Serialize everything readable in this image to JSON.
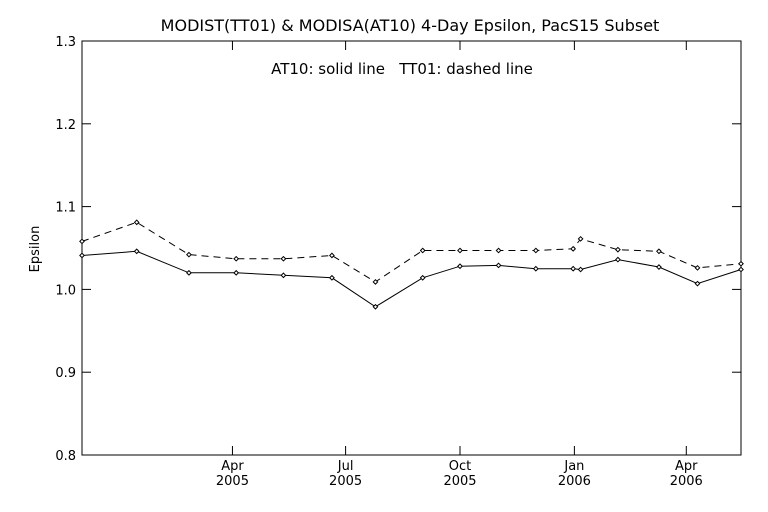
{
  "chart_data": {
    "type": "line",
    "title": "MODIST(TT01) & MODISA(AT10) 4-Day Epsilon, PacS15 Subset",
    "annotation": "AT10: solid line   TT01: dashed line",
    "xlabel": "",
    "ylabel": "Epsilon",
    "ylim": [
      0.8,
      1.3
    ],
    "yticks": [
      0.8,
      0.9,
      1.0,
      1.1,
      1.2,
      1.3
    ],
    "ytick_labels": [
      "0.8",
      "0.9",
      "1.0",
      "1.1",
      "1.2",
      "1.3"
    ],
    "xlim": [
      "2004-12-01",
      "2006-05-15"
    ],
    "xticks": [
      {
        "date": "2005-04-01",
        "line1": "Apr",
        "line2": "2005"
      },
      {
        "date": "2005-07-01",
        "line1": "Jul",
        "line2": "2005"
      },
      {
        "date": "2005-10-01",
        "line1": "Oct",
        "line2": "2005"
      },
      {
        "date": "2006-01-01",
        "line1": "Jan",
        "line2": "2006"
      },
      {
        "date": "2006-04-01",
        "line1": "Apr",
        "line2": "2006"
      }
    ],
    "grid": false,
    "series": [
      {
        "name": "AT10",
        "style": "solid",
        "color": "#000000",
        "points": [
          {
            "x": "2004-12-01",
            "y": 1.041
          },
          {
            "x": "2005-01-14",
            "y": 1.046
          },
          {
            "x": "2005-02-25",
            "y": 1.02
          },
          {
            "x": "2005-04-04",
            "y": 1.02
          },
          {
            "x": "2005-05-12",
            "y": 1.017
          },
          {
            "x": "2005-06-20",
            "y": 1.014
          },
          {
            "x": "2005-07-25",
            "y": 0.979
          },
          {
            "x": "2005-09-01",
            "y": 1.014
          },
          {
            "x": "2005-10-01",
            "y": 1.028
          },
          {
            "x": "2005-11-01",
            "y": 1.029
          },
          {
            "x": "2005-12-01",
            "y": 1.025
          },
          {
            "x": "2005-12-31",
            "y": 1.025
          },
          {
            "x": "2006-01-06",
            "y": 1.024
          },
          {
            "x": "2006-02-05",
            "y": 1.036
          },
          {
            "x": "2006-03-10",
            "y": 1.027
          },
          {
            "x": "2006-04-10",
            "y": 1.007
          },
          {
            "x": "2006-05-15",
            "y": 1.024
          }
        ]
      },
      {
        "name": "TT01",
        "style": "dashed",
        "color": "#000000",
        "points": [
          {
            "x": "2004-12-01",
            "y": 1.058
          },
          {
            "x": "2005-01-14",
            "y": 1.081
          },
          {
            "x": "2005-02-25",
            "y": 1.042
          },
          {
            "x": "2005-04-04",
            "y": 1.037
          },
          {
            "x": "2005-05-12",
            "y": 1.037
          },
          {
            "x": "2005-06-20",
            "y": 1.041
          },
          {
            "x": "2005-07-25",
            "y": 1.009
          },
          {
            "x": "2005-09-01",
            "y": 1.047
          },
          {
            "x": "2005-10-01",
            "y": 1.047
          },
          {
            "x": "2005-11-01",
            "y": 1.047
          },
          {
            "x": "2005-12-01",
            "y": 1.047
          },
          {
            "x": "2005-12-31",
            "y": 1.049
          },
          {
            "x": "2006-01-06",
            "y": 1.061
          },
          {
            "x": "2006-02-05",
            "y": 1.048
          },
          {
            "x": "2006-03-10",
            "y": 1.046
          },
          {
            "x": "2006-04-10",
            "y": 1.026
          },
          {
            "x": "2006-05-15",
            "y": 1.031
          }
        ]
      }
    ]
  }
}
